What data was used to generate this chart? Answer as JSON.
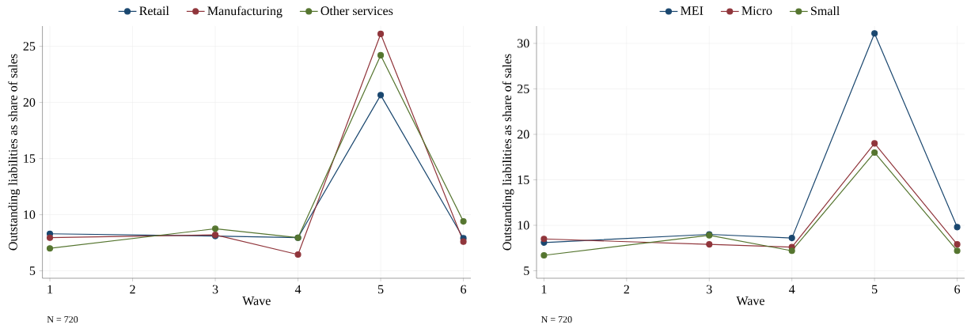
{
  "chart_data": [
    {
      "type": "line",
      "xlabel": "Wave",
      "ylabel": "Outstanding liabilities as share of sales",
      "x": [
        1,
        3,
        4,
        5,
        6
      ],
      "xlim": [
        0.91,
        6.09
      ],
      "ylim": [
        4.34,
        26.8
      ],
      "xticks": [
        1,
        2,
        3,
        4,
        5,
        6
      ],
      "yticks": [
        5,
        10,
        15,
        20,
        25
      ],
      "grid": true,
      "legend": "top",
      "marker": "circle",
      "line_style": "solid",
      "annotations": [
        "N = 720"
      ],
      "series": [
        {
          "name": "Retail",
          "color": "#1a476f",
          "values": [
            8.3,
            8.1,
            7.95,
            20.65,
            7.9
          ]
        },
        {
          "name": "Manufacturing",
          "color": "#90353b",
          "values": [
            7.95,
            8.2,
            6.45,
            26.1,
            7.6
          ]
        },
        {
          "name": "Other services",
          "color": "#55752f",
          "values": [
            7.0,
            8.75,
            7.95,
            24.2,
            9.4
          ]
        }
      ]
    },
    {
      "type": "line",
      "xlabel": "Wave",
      "ylabel": "Outstanding liabilities as share of sales",
      "x": [
        1,
        3,
        4,
        5,
        6
      ],
      "xlim": [
        0.91,
        6.09
      ],
      "ylim": [
        4.18,
        31.9
      ],
      "xticks": [
        1,
        2,
        3,
        4,
        5,
        6
      ],
      "yticks": [
        5,
        10,
        15,
        20,
        25,
        30
      ],
      "grid": true,
      "legend": "top",
      "marker": "circle",
      "line_style": "solid",
      "annotations": [
        "N = 720"
      ],
      "series": [
        {
          "name": "MEI",
          "color": "#1a476f",
          "values": [
            8.1,
            9.0,
            8.6,
            31.1,
            9.8
          ]
        },
        {
          "name": "Micro",
          "color": "#90353b",
          "values": [
            8.5,
            7.9,
            7.6,
            19.0,
            7.9
          ]
        },
        {
          "name": "Small",
          "color": "#55752f",
          "values": [
            6.7,
            8.9,
            7.2,
            18.0,
            7.2
          ]
        }
      ]
    }
  ]
}
